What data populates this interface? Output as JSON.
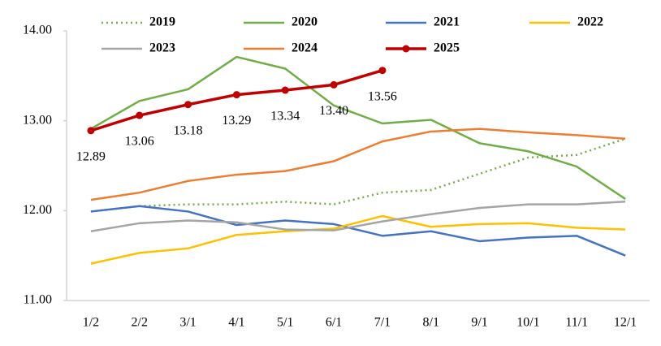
{
  "chart_data": {
    "type": "line",
    "categories": [
      "1/2",
      "2/2",
      "3/1",
      "4/1",
      "5/1",
      "6/1",
      "7/1",
      "8/1",
      "9/1",
      "10/1",
      "11/1",
      "12/1"
    ],
    "series": [
      {
        "name": "2019",
        "color": "#70ad47",
        "dashed": true,
        "values": [
          11.99,
          12.05,
          12.07,
          12.07,
          12.1,
          12.07,
          12.2,
          12.23,
          12.41,
          12.59,
          12.62,
          12.8
        ]
      },
      {
        "name": "2020",
        "color": "#70ad47",
        "values": [
          12.91,
          13.22,
          13.35,
          13.71,
          13.58,
          13.17,
          12.97,
          13.01,
          12.75,
          12.66,
          12.49,
          12.13
        ]
      },
      {
        "name": "2021",
        "color": "#4472c4",
        "values": [
          11.99,
          12.05,
          11.99,
          11.84,
          11.89,
          11.85,
          11.72,
          11.77,
          11.66,
          11.7,
          11.72,
          11.5
        ]
      },
      {
        "name": "2022",
        "color": "#ffc000",
        "values": [
          11.41,
          11.53,
          11.58,
          11.73,
          11.77,
          11.8,
          11.94,
          11.82,
          11.85,
          11.86,
          11.81,
          11.79
        ]
      },
      {
        "name": "2023",
        "color": "#a5a5a5",
        "values": [
          11.77,
          11.86,
          11.89,
          11.87,
          11.79,
          11.78,
          11.88,
          11.96,
          12.03,
          12.07,
          12.07,
          12.1
        ]
      },
      {
        "name": "2024",
        "color": "#ed7d31",
        "values": [
          12.12,
          12.2,
          12.33,
          12.4,
          12.44,
          12.55,
          12.77,
          12.88,
          12.91,
          12.87,
          12.84,
          12.8
        ]
      },
      {
        "name": "2025",
        "color": "#c00000",
        "markers": true,
        "values": [
          12.89,
          13.06,
          13.18,
          13.29,
          13.34,
          13.4,
          13.56,
          null,
          null,
          null,
          null,
          null
        ],
        "value_labels": [
          "12.89",
          "13.06",
          "13.18",
          "13.29",
          "13.34",
          "13.40",
          "13.56",
          null,
          null,
          null,
          null,
          null
        ]
      }
    ],
    "ylim": [
      11,
      14
    ],
    "yticks": [
      {
        "value": 11,
        "label": "11.00"
      },
      {
        "value": 12,
        "label": "12.00"
      },
      {
        "value": 13,
        "label": "13.00"
      },
      {
        "value": 14,
        "label": "14.00"
      }
    ],
    "grid": false,
    "legend": "top"
  }
}
